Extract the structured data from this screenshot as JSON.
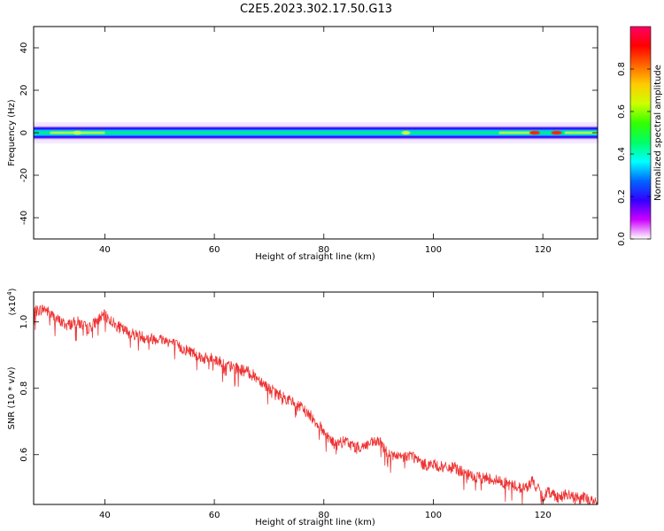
{
  "figure": {
    "title": "C2E5.2023.302.17.50.G13"
  },
  "chart_data": [
    {
      "type": "heatmap",
      "xlabel": "Height of straight line (km)",
      "ylabel": "Frequency (Hz)",
      "xlim": [
        27,
        130
      ],
      "ylim": [
        -50,
        50
      ],
      "xticks": [
        40,
        60,
        80,
        100,
        120
      ],
      "yticks": [
        -40,
        -20,
        0,
        20,
        40
      ],
      "colorbar": {
        "label": "Normalized spectral amplitude",
        "range": [
          0,
          1
        ],
        "ticks": [
          "0.0",
          "0.2",
          "0.4",
          "0.6",
          "0.8"
        ],
        "colormap": [
          "#ffffff",
          "#cc00ff",
          "#3300ff",
          "#0066ff",
          "#00ffff",
          "#00ff66",
          "#33ff00",
          "#ccff00",
          "#ffcc00",
          "#ff6600",
          "#ff0000",
          "#ff0066"
        ]
      },
      "band": {
        "center_hz": 0,
        "core_halfwidth_hz": 1.5,
        "outer_halfwidth_hz": 3,
        "halo_halfwidth_hz": 5,
        "hotspots_km": [
          35,
          95,
          118.5,
          122.5
        ]
      }
    },
    {
      "type": "line",
      "xlabel": "Height of straight line (km)",
      "ylabel": "SNR (10 * v/v)",
      "yscale_label": "(x10",
      "yscale_exp": "4",
      "xlim": [
        27,
        130
      ],
      "ylim": [
        0.45,
        1.09
      ],
      "xticks": [
        40,
        60,
        80,
        100,
        120
      ],
      "yticks": [
        "0.6",
        "0.8",
        "1.0"
      ],
      "color": "#ee3333",
      "series": [
        {
          "x": [
            27,
            29,
            31,
            33,
            35,
            37,
            39,
            40,
            42,
            44,
            46,
            48,
            50,
            52,
            54,
            56,
            58,
            60,
            62,
            64,
            66,
            68,
            70,
            72,
            74,
            76,
            78,
            80,
            82,
            84,
            86,
            88,
            90,
            92,
            94,
            96,
            98,
            100,
            102,
            104,
            106,
            108,
            110,
            112,
            114,
            116,
            117,
            118,
            119,
            120,
            121,
            122,
            123,
            124,
            126,
            128,
            130
          ],
          "y": [
            1.03,
            1.04,
            1.01,
            0.99,
            1.0,
            0.98,
            1.01,
            1.02,
            0.99,
            0.97,
            0.96,
            0.95,
            0.95,
            0.94,
            0.92,
            0.91,
            0.89,
            0.89,
            0.87,
            0.86,
            0.85,
            0.83,
            0.8,
            0.78,
            0.76,
            0.74,
            0.71,
            0.67,
            0.63,
            0.64,
            0.62,
            0.63,
            0.64,
            0.6,
            0.59,
            0.6,
            0.57,
            0.57,
            0.56,
            0.56,
            0.54,
            0.53,
            0.53,
            0.52,
            0.51,
            0.5,
            0.5,
            0.52,
            0.5,
            0.47,
            0.49,
            0.48,
            0.47,
            0.48,
            0.47,
            0.47,
            0.45
          ]
        }
      ]
    }
  ]
}
